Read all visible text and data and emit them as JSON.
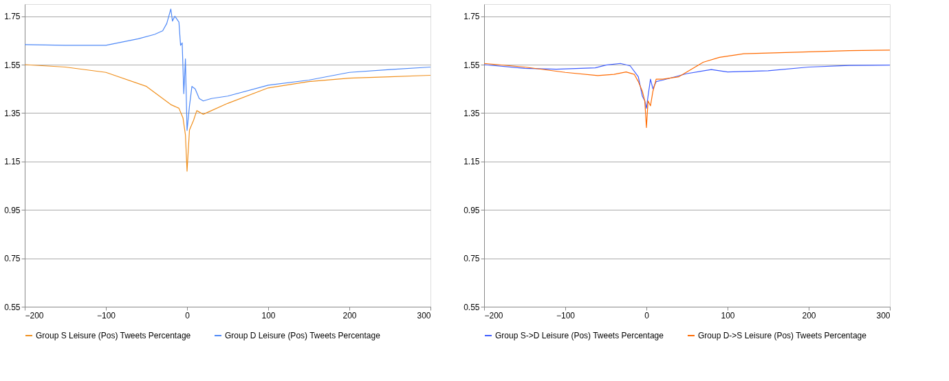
{
  "chart_data": [
    {
      "type": "line",
      "xlim": [
        -200,
        300
      ],
      "xticks": [
        -200,
        -100,
        0,
        100,
        200,
        300
      ],
      "ylim": [
        0.55,
        1.8
      ],
      "yticks": [
        0.55,
        0.75,
        0.95,
        1.15,
        1.35,
        1.55,
        1.75
      ],
      "grid": "y",
      "legend": "bottom",
      "series": [
        {
          "name": "Group S Leisure (Pos) Tweets Percentage",
          "color": "#f0901e",
          "x": [
            -200,
            -150,
            -100,
            -50,
            -20,
            -10,
            -5,
            -2,
            0,
            3,
            8,
            12,
            20,
            30,
            50,
            100,
            150,
            200,
            250,
            300
          ],
          "values": [
            1.55,
            1.54,
            1.518,
            1.46,
            1.385,
            1.37,
            1.33,
            1.26,
            1.11,
            1.28,
            1.32,
            1.36,
            1.345,
            1.36,
            1.39,
            1.454,
            1.48,
            1.494,
            1.5,
            1.506
          ]
        },
        {
          "name": "Group D Leisure (Pos) Tweets Percentage",
          "color": "#4d88f7",
          "x": [
            -200,
            -150,
            -100,
            -60,
            -40,
            -30,
            -25,
            -20,
            -18,
            -15,
            -10,
            -8,
            -6,
            -4,
            -2,
            0,
            3,
            6,
            10,
            15,
            20,
            30,
            50,
            100,
            150,
            200,
            250,
            300
          ],
          "values": [
            1.633,
            1.63,
            1.63,
            1.657,
            1.675,
            1.69,
            1.72,
            1.78,
            1.73,
            1.75,
            1.726,
            1.63,
            1.64,
            1.43,
            1.574,
            1.278,
            1.38,
            1.46,
            1.45,
            1.41,
            1.4,
            1.41,
            1.42,
            1.465,
            1.486,
            1.518,
            1.53,
            1.54
          ]
        }
      ]
    },
    {
      "type": "line",
      "xlim": [
        -200,
        300
      ],
      "xticks": [
        -200,
        -100,
        0,
        100,
        200,
        300
      ],
      "ylim": [
        0.55,
        1.8
      ],
      "yticks": [
        0.55,
        0.75,
        0.95,
        1.15,
        1.35,
        1.55,
        1.75
      ],
      "grid": "y",
      "legend": "bottom",
      "series": [
        {
          "name": "Group S->D Leisure (Pos) Tweets Percentage",
          "color": "#3d5cff",
          "x": [
            -200,
            -150,
            -111,
            -63,
            -50,
            -32,
            -20,
            -10,
            -5,
            -2,
            0,
            2,
            5,
            8,
            12,
            20,
            50,
            80,
            100,
            150,
            200,
            250,
            300
          ],
          "values": [
            1.55,
            1.535,
            1.531,
            1.537,
            1.548,
            1.555,
            1.545,
            1.5,
            1.42,
            1.4,
            1.37,
            1.42,
            1.49,
            1.45,
            1.48,
            1.486,
            1.513,
            1.53,
            1.52,
            1.525,
            1.54,
            1.547,
            1.548
          ]
        },
        {
          "name": "Group D->S Leisure (Pos) Tweets Percentage",
          "color": "#ff6a00",
          "x": [
            -200,
            -150,
            -100,
            -60,
            -40,
            -25,
            -15,
            -10,
            -5,
            -2,
            0,
            2,
            5,
            8,
            12,
            20,
            40,
            60,
            70,
            90,
            120,
            150,
            200,
            250,
            300
          ],
          "values": [
            1.555,
            1.54,
            1.518,
            1.505,
            1.51,
            1.52,
            1.51,
            1.48,
            1.44,
            1.4,
            1.29,
            1.4,
            1.38,
            1.44,
            1.49,
            1.49,
            1.5,
            1.54,
            1.56,
            1.58,
            1.595,
            1.598,
            1.603,
            1.608,
            1.61
          ]
        }
      ]
    }
  ]
}
